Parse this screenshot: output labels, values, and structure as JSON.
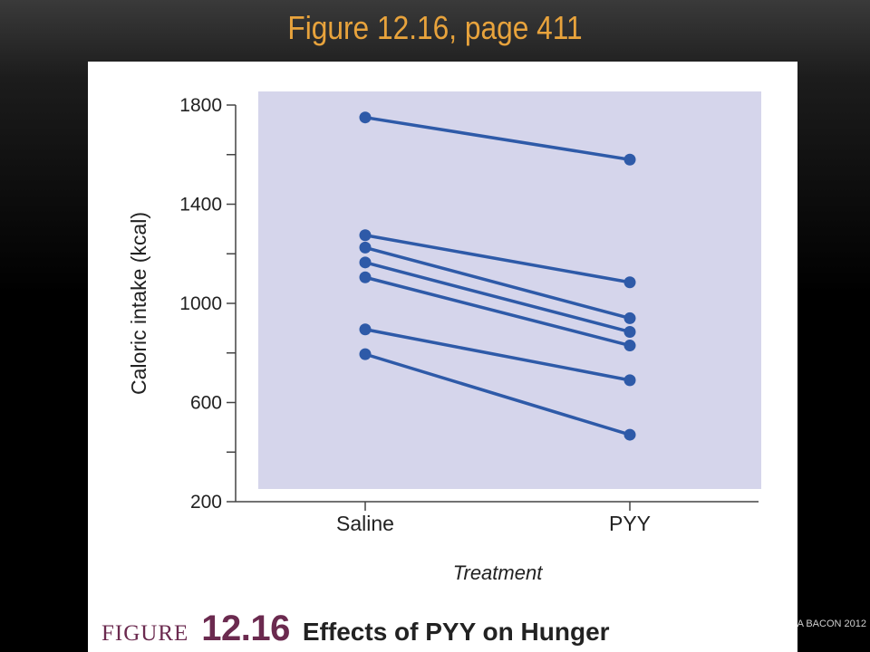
{
  "slide": {
    "title": "Figure 12.16, page 411",
    "credit": "A BACON 2012"
  },
  "caption": {
    "figure_word": "FIGURE",
    "number": "12.16",
    "text": "Effects of PYY on Hunger"
  },
  "colors": {
    "title": "#e8a33c",
    "plot_bg": "#d5d5eb",
    "series": "#2e5aa8",
    "caption_accent": "#6b2a4f"
  },
  "chart_data": {
    "type": "line",
    "categories": [
      "Saline",
      "PYY"
    ],
    "xlabel": "Treatment",
    "ylabel": "Caloric intake (kcal)",
    "ylim": [
      200,
      1800
    ],
    "yticks": [
      200,
      600,
      1000,
      1400,
      1800
    ],
    "yticks_minor": [
      400,
      800,
      1200,
      1600
    ],
    "grid": false,
    "legend": "none",
    "series": [
      {
        "values": [
          1750,
          1580
        ]
      },
      {
        "values": [
          1275,
          1085
        ]
      },
      {
        "values": [
          1225,
          940
        ]
      },
      {
        "values": [
          1165,
          885
        ]
      },
      {
        "values": [
          1105,
          830
        ]
      },
      {
        "values": [
          895,
          690
        ]
      },
      {
        "values": [
          795,
          470
        ]
      }
    ]
  }
}
